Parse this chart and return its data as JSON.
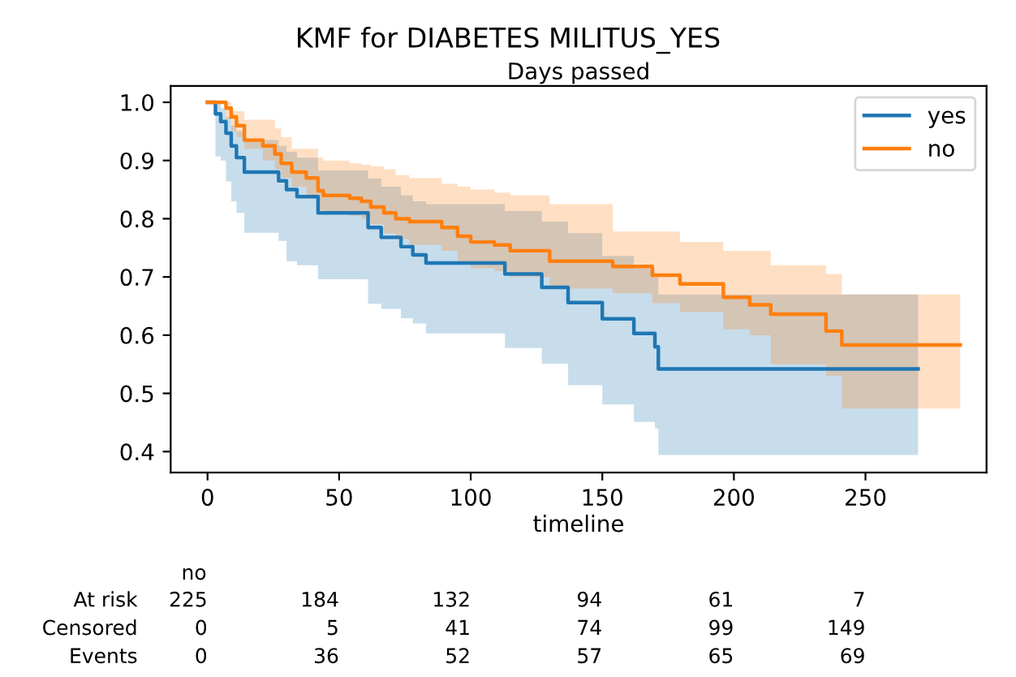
{
  "chart_data": {
    "type": "step",
    "title": "KMF for DIABETES MILITUS_YES",
    "subtitle": "Days passed",
    "xlabel": "timeline",
    "xlim": [
      -14,
      296
    ],
    "ylim": [
      0.364,
      1.028
    ],
    "xticks": [
      0,
      50,
      100,
      150,
      200,
      250
    ],
    "yticks": [
      0.4,
      0.5,
      0.6,
      0.7,
      0.8,
      0.9,
      {
        "value": 1.0,
        "label": "1.0"
      }
    ],
    "grid": false,
    "legend": "top right",
    "marker": "none",
    "line_style": "solid",
    "series": [
      {
        "name": "yes",
        "color": "#1f77b4",
        "x": [
          0,
          3,
          5,
          7,
          9,
          11,
          14,
          27,
          30,
          34,
          42,
          61,
          66,
          73.5,
          78,
          83,
          113,
          127,
          137,
          150,
          162,
          170,
          171.3,
          270
        ],
        "values": [
          1.0,
          0.98,
          0.967,
          0.947,
          0.925,
          0.905,
          0.88,
          0.865,
          0.85,
          0.838,
          0.81,
          0.785,
          0.768,
          0.752,
          0.738,
          0.724,
          0.705,
          0.682,
          0.656,
          0.628,
          0.603,
          0.58,
          0.542,
          0.542
        ],
        "lower": [
          1.0,
          0.907,
          0.9,
          0.864,
          0.83,
          0.81,
          0.776,
          0.762,
          0.727,
          0.72,
          0.696,
          0.654,
          0.645,
          0.629,
          0.62,
          0.603,
          0.578,
          0.551,
          0.514,
          0.481,
          0.451,
          0.44,
          0.394,
          0.394
        ],
        "upper": [
          1.0,
          1.0,
          0.99,
          0.975,
          0.96,
          0.95,
          0.935,
          0.925,
          0.915,
          0.905,
          0.883,
          0.869,
          0.855,
          0.84,
          0.83,
          0.825,
          0.813,
          0.795,
          0.775,
          0.736,
          0.715,
          0.7,
          0.67,
          0.67
        ]
      },
      {
        "name": "no",
        "color": "#ff7f0e",
        "x": [
          0,
          7,
          9,
          11,
          14,
          21,
          25.6,
          28,
          32,
          37.5,
          42,
          44,
          54,
          58.5,
          62,
          67,
          71.5,
          76.7,
          89,
          95,
          100,
          109,
          115,
          130,
          154,
          169,
          179.5,
          196,
          206,
          214,
          235,
          241,
          286
        ],
        "values": [
          1.0,
          0.99,
          0.975,
          0.96,
          0.935,
          0.925,
          0.911,
          0.895,
          0.88,
          0.87,
          0.848,
          0.84,
          0.835,
          0.83,
          0.82,
          0.81,
          0.8,
          0.795,
          0.785,
          0.77,
          0.76,
          0.755,
          0.745,
          0.727,
          0.718,
          0.703,
          0.688,
          0.665,
          0.652,
          0.636,
          0.607,
          0.583,
          0.583
        ],
        "lower": [
          1.0,
          0.97,
          0.95,
          0.94,
          0.92,
          0.9,
          0.885,
          0.87,
          0.855,
          0.84,
          0.815,
          0.81,
          0.805,
          0.8,
          0.79,
          0.775,
          0.765,
          0.755,
          0.745,
          0.725,
          0.715,
          0.71,
          0.7,
          0.68,
          0.672,
          0.655,
          0.64,
          0.61,
          0.6,
          0.55,
          0.53,
          0.474,
          0.474
        ],
        "upper": [
          1.0,
          1.0,
          0.985,
          0.985,
          0.97,
          0.97,
          0.955,
          0.94,
          0.92,
          0.92,
          0.905,
          0.9,
          0.895,
          0.893,
          0.89,
          0.885,
          0.875,
          0.87,
          0.86,
          0.855,
          0.85,
          0.845,
          0.84,
          0.825,
          0.778,
          0.778,
          0.76,
          0.745,
          0.745,
          0.72,
          0.705,
          0.67,
          0.67
        ]
      }
    ],
    "annotations": [
      "no",
      "At risk",
      "225",
      "184",
      "132",
      "94",
      "61",
      "7",
      "Censored",
      "0",
      "5",
      "41",
      "74",
      "99",
      "149",
      "Events",
      "0",
      "36",
      "52",
      "57",
      "65",
      "69"
    ]
  }
}
